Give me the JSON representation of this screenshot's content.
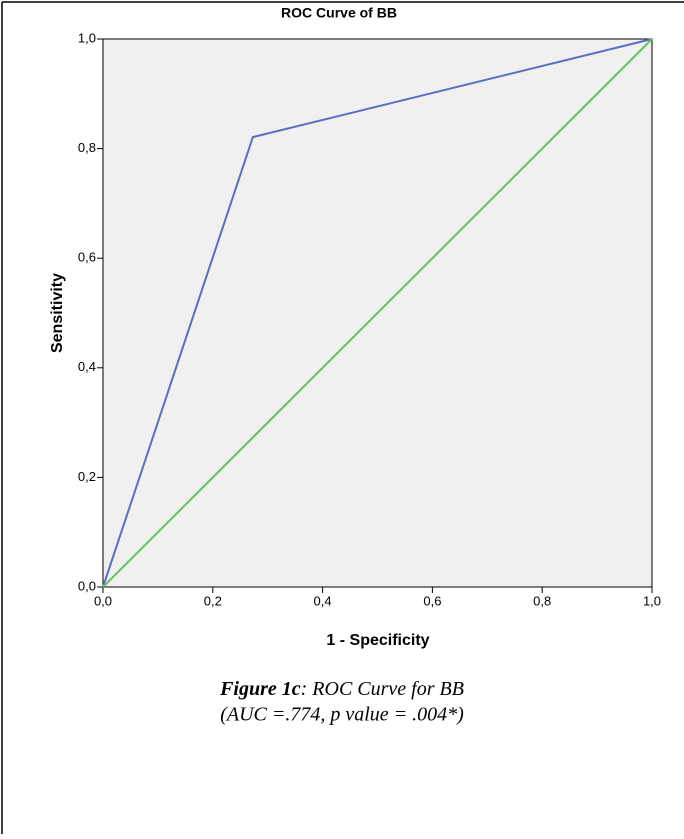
{
  "chart_data": {
    "type": "line",
    "title": "ROC Curve of BB",
    "xlabel": "1 - Specificity",
    "ylabel": "Sensitivity",
    "series": [
      {
        "color": "#5b6ec4",
        "x": [
          0,
          0.273,
          1
        ],
        "values": [
          0,
          0.821,
          1
        ]
      },
      {
        "color": "#5fc35f",
        "x": [
          0,
          1
        ],
        "values": [
          0,
          1
        ]
      }
    ],
    "xlim": [
      0,
      1
    ],
    "ylim": [
      0,
      1
    ],
    "xticks": [
      {
        "value": 0,
        "label": "0,0"
      },
      {
        "value": 0.2,
        "label": "0,2"
      },
      {
        "value": 0.4,
        "label": "0,4"
      },
      {
        "value": 0.6,
        "label": "0,6"
      },
      {
        "value": 0.8,
        "label": "0,8"
      },
      {
        "value": 1,
        "label": "1,0"
      }
    ],
    "yticks": [
      {
        "value": 0,
        "label": "0,0"
      },
      {
        "value": 0.2,
        "label": "0,2"
      },
      {
        "value": 0.4,
        "label": "0,4"
      },
      {
        "value": 0.6,
        "label": "0,6"
      },
      {
        "value": 0.8,
        "label": "0,8"
      },
      {
        "value": 1,
        "label": "1,0"
      }
    ],
    "grid": false,
    "plot_background": "#f0f0f0",
    "caption_label": "Figure 1c",
    "caption_text": ": ROC Curve for BB",
    "caption_note": "(AUC =.774, p value = .004*)"
  }
}
